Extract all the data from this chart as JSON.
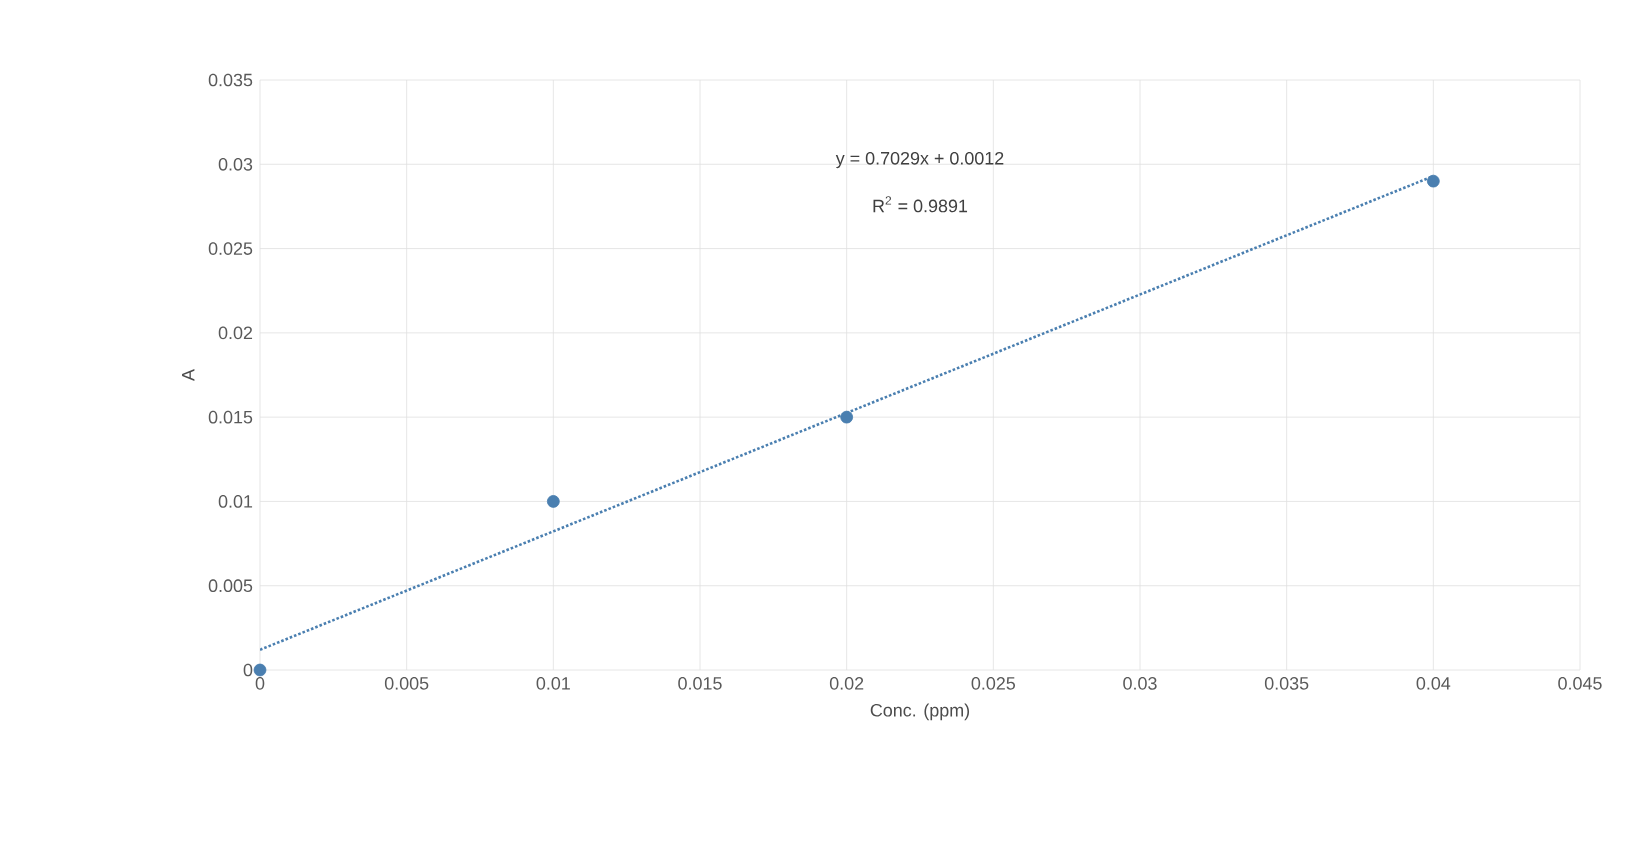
{
  "chart_data": {
    "type": "scatter",
    "xlabel": "Conc. (ppm)",
    "ylabel": "A",
    "annotations": [
      "y = 0.7029x + 0.0012",
      "R$^{2}$ = 0.9891"
    ],
    "x": [
      0,
      0.01,
      0.02,
      0.04
    ],
    "series": [
      {
        "color": "#4a7fb0",
        "values": [
          0,
          0.01,
          0.015,
          0.029
        ],
        "marker": "circle"
      },
      {
        "type": "line",
        "x": [
          0,
          0.04
        ],
        "values": [
          0.0012,
          0.0293
        ],
        "color": "#4a7fb0",
        "line_style": "dotted"
      }
    ],
    "xlim": [
      0,
      0.045
    ],
    "ylim": [
      0,
      0.035
    ],
    "xticks": [
      0,
      0.005,
      0.01,
      0.015,
      0.02,
      0.025,
      0.03,
      0.035,
      0.04,
      0.045
    ],
    "yticks": [
      0,
      0.005,
      0.01,
      0.015,
      0.02,
      0.025,
      0.03,
      0.035
    ],
    "grid": true
  }
}
